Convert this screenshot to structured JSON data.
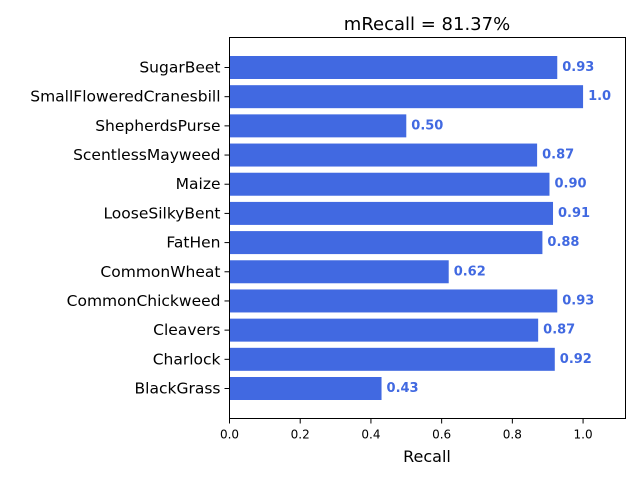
{
  "chart_data": {
    "type": "bar",
    "orientation": "horizontal",
    "title": "mRecall = 81.37%",
    "xlabel": "Recall",
    "ylabel": "",
    "xlim": [
      0,
      1.12
    ],
    "xticks": [
      "0.0",
      "0.2",
      "0.4",
      "0.6",
      "0.8",
      "1.0"
    ],
    "grid": false,
    "bar_color": "#4169e1",
    "categories": [
      "SugarBeet",
      "SmallFloweredCranesbill",
      "ShepherdsPurse",
      "ScentlessMayweed",
      "Maize",
      "LooseSilkyBent",
      "FatHen",
      "CommonWheat",
      "CommonChickweed",
      "Cleavers",
      "Charlock",
      "BlackGrass"
    ],
    "values": [
      0.927,
      1.0,
      0.5,
      0.87,
      0.905,
      0.915,
      0.885,
      0.62,
      0.927,
      0.873,
      0.92,
      0.43
    ],
    "labels": [
      "0.93",
      "1.0",
      "0.50",
      "0.87",
      "0.90",
      "0.91",
      "0.88",
      "0.62",
      "0.93",
      "0.87",
      "0.92",
      "0.43"
    ]
  }
}
